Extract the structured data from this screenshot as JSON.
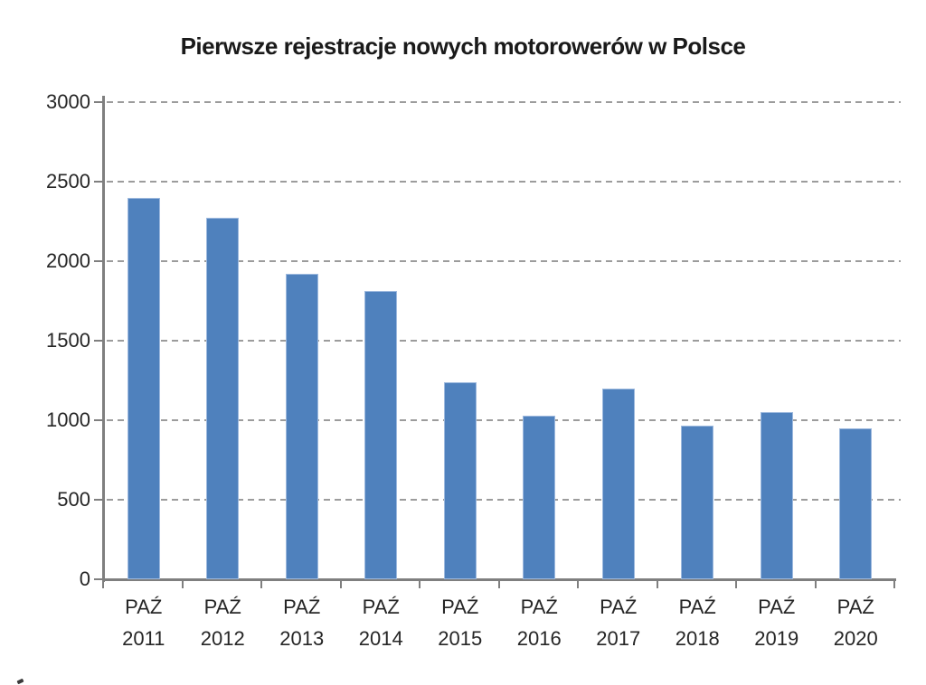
{
  "chart_data": {
    "type": "bar",
    "title": "Pierwsze rejestracje nowych motorowerów w Polsce",
    "categories": [
      {
        "line1": "PAŹ",
        "line2": "2011"
      },
      {
        "line1": "PAŹ",
        "line2": "2012"
      },
      {
        "line1": "PAŹ",
        "line2": "2013"
      },
      {
        "line1": "PAŹ",
        "line2": "2014"
      },
      {
        "line1": "PAŹ",
        "line2": "2015"
      },
      {
        "line1": "PAŹ",
        "line2": "2016"
      },
      {
        "line1": "PAŹ",
        "line2": "2017"
      },
      {
        "line1": "PAŹ",
        "line2": "2018"
      },
      {
        "line1": "PAŹ",
        "line2": "2019"
      },
      {
        "line1": "PAŹ",
        "line2": "2020"
      }
    ],
    "values": [
      2400,
      2270,
      1920,
      1810,
      1240,
      1030,
      1200,
      965,
      1050,
      950
    ],
    "xlabel": "",
    "ylabel": "",
    "ylim": [
      0,
      3000
    ],
    "yticks": [
      0,
      500,
      1000,
      1500,
      2000,
      2500,
      3000
    ],
    "grid": true,
    "gridline_style": "dashed",
    "legend_position": "none",
    "bar_color": "#4f81bd",
    "bar_border_color": "#9db9de",
    "gridline_color": "#9c9c9c",
    "axis_color": "#7f7f7f",
    "text_color": "#262626",
    "title_color": "#1a1a1a",
    "background_color": "#ffffff"
  }
}
